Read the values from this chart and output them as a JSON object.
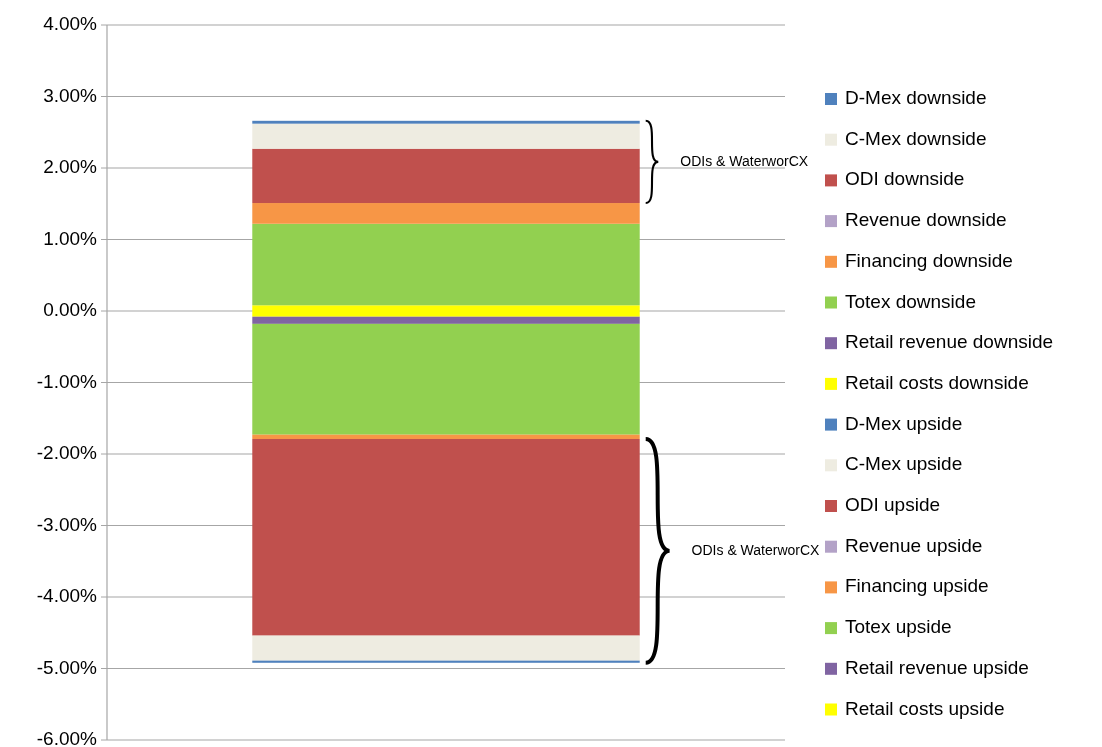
{
  "chart_data": {
    "type": "bar",
    "stacked": true,
    "categories": [
      null
    ],
    "ylim": [
      -6,
      4
    ],
    "yticks": [
      {
        "value": -6,
        "label": "-6.00%"
      },
      {
        "value": -5,
        "label": "-5.00%"
      },
      {
        "value": -4,
        "label": "-4.00%"
      },
      {
        "value": -3,
        "label": "-3.00%"
      },
      {
        "value": -2,
        "label": "-2.00%"
      },
      {
        "value": -1,
        "label": "-1.00%"
      },
      {
        "value": 0,
        "label": "0.00%"
      },
      {
        "value": 1,
        "label": "1.00%"
      },
      {
        "value": 2,
        "label": "2.00%"
      },
      {
        "value": 3,
        "label": "3.00%"
      },
      {
        "value": 4,
        "label": "4.00%"
      }
    ],
    "grid": "y",
    "legend": "right",
    "series": [
      {
        "name": "Retail costs upside",
        "color": "#ffff00",
        "values": [
          -0.08
        ]
      },
      {
        "name": "Retail revenue upside",
        "color": "#8064a2",
        "values": [
          -0.1
        ]
      },
      {
        "name": "Totex upside",
        "color": "#92d050",
        "values": [
          -1.55
        ]
      },
      {
        "name": "Financing upside",
        "color": "#f79646",
        "values": [
          -0.06
        ]
      },
      {
        "name": "Revenue upside",
        "color": "#b3a2c7",
        "values": [
          0
        ]
      },
      {
        "name": "ODI upside",
        "color": "#c0504d",
        "values": [
          -2.75
        ]
      },
      {
        "name": "C-Mex upside",
        "color": "#eeece1",
        "values": [
          -0.35
        ]
      },
      {
        "name": "D-Mex upside",
        "color": "#4f81bd",
        "values": [
          -0.03
        ]
      },
      {
        "name": "Retail costs downside",
        "color": "#ffff00",
        "values": [
          0.08
        ]
      },
      {
        "name": "Retail revenue downside",
        "color": "#8064a2",
        "values": [
          0
        ]
      },
      {
        "name": "Totex downside",
        "color": "#92d050",
        "values": [
          1.14
        ]
      },
      {
        "name": "Financing downside",
        "color": "#f79646",
        "values": [
          0.29
        ]
      },
      {
        "name": "Revenue downside",
        "color": "#b3a2c7",
        "values": [
          0
        ]
      },
      {
        "name": "ODI downside",
        "color": "#c0504d",
        "values": [
          0.76
        ]
      },
      {
        "name": "C-Mex downside",
        "color": "#eeece1",
        "values": [
          0.35
        ]
      },
      {
        "name": "D-Mex downside",
        "color": "#4f81bd",
        "values": [
          0.04
        ]
      }
    ],
    "annotations": [
      "ODIs & WaterworCX",
      "ODIs & WaterworCX"
    ]
  }
}
